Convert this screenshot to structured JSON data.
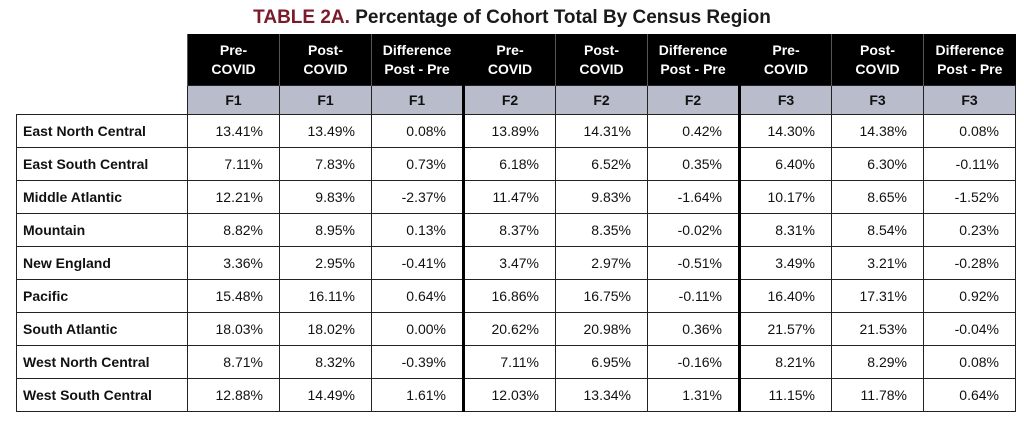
{
  "title": {
    "prefix": "TABLE 2A.",
    "text": "Percentage of Cohort Total By Census Region"
  },
  "header": {
    "columns": [
      {
        "l1": "Pre-",
        "l2": "COVID"
      },
      {
        "l1": "Post-",
        "l2": "COVID"
      },
      {
        "l1": "Difference",
        "l2": "Post - Pre"
      },
      {
        "l1": "Pre-",
        "l2": "COVID"
      },
      {
        "l1": "Post-",
        "l2": "COVID"
      },
      {
        "l1": "Difference",
        "l2": "Post - Pre"
      },
      {
        "l1": "Pre-",
        "l2": "COVID"
      },
      {
        "l1": "Post-",
        "l2": "COVID"
      },
      {
        "l1": "Difference",
        "l2": "Post - Pre"
      }
    ],
    "sub": [
      "F1",
      "F1",
      "F1",
      "F2",
      "F2",
      "F2",
      "F3",
      "F3",
      "F3"
    ]
  },
  "rows": [
    {
      "region": "East North Central",
      "values": [
        "13.41%",
        "13.49%",
        "0.08%",
        "13.89%",
        "14.31%",
        "0.42%",
        "14.30%",
        "14.38%",
        "0.08%"
      ]
    },
    {
      "region": "East South Central",
      "values": [
        "7.11%",
        "7.83%",
        "0.73%",
        "6.18%",
        "6.52%",
        "0.35%",
        "6.40%",
        "6.30%",
        "-0.11%"
      ]
    },
    {
      "region": "Middle Atlantic",
      "values": [
        "12.21%",
        "9.83%",
        "-2.37%",
        "11.47%",
        "9.83%",
        "-1.64%",
        "10.17%",
        "8.65%",
        "-1.52%"
      ]
    },
    {
      "region": "Mountain",
      "values": [
        "8.82%",
        "8.95%",
        "0.13%",
        "8.37%",
        "8.35%",
        "-0.02%",
        "8.31%",
        "8.54%",
        "0.23%"
      ]
    },
    {
      "region": "New England",
      "values": [
        "3.36%",
        "2.95%",
        "-0.41%",
        "3.47%",
        "2.97%",
        "-0.51%",
        "3.49%",
        "3.21%",
        "-0.28%"
      ]
    },
    {
      "region": "Pacific",
      "values": [
        "15.48%",
        "16.11%",
        "0.64%",
        "16.86%",
        "16.75%",
        "-0.11%",
        "16.40%",
        "17.31%",
        "0.92%"
      ]
    },
    {
      "region": "South Atlantic",
      "values": [
        "18.03%",
        "18.02%",
        "0.00%",
        "20.62%",
        "20.98%",
        "0.36%",
        "21.57%",
        "21.53%",
        "-0.04%"
      ]
    },
    {
      "region": "West North Central",
      "values": [
        "8.71%",
        "8.32%",
        "-0.39%",
        "7.11%",
        "6.95%",
        "-0.16%",
        "8.21%",
        "8.29%",
        "0.08%"
      ]
    },
    {
      "region": "West South Central",
      "values": [
        "12.88%",
        "14.49%",
        "1.61%",
        "12.03%",
        "13.34%",
        "1.31%",
        "11.15%",
        "11.78%",
        "0.64%"
      ]
    }
  ]
}
